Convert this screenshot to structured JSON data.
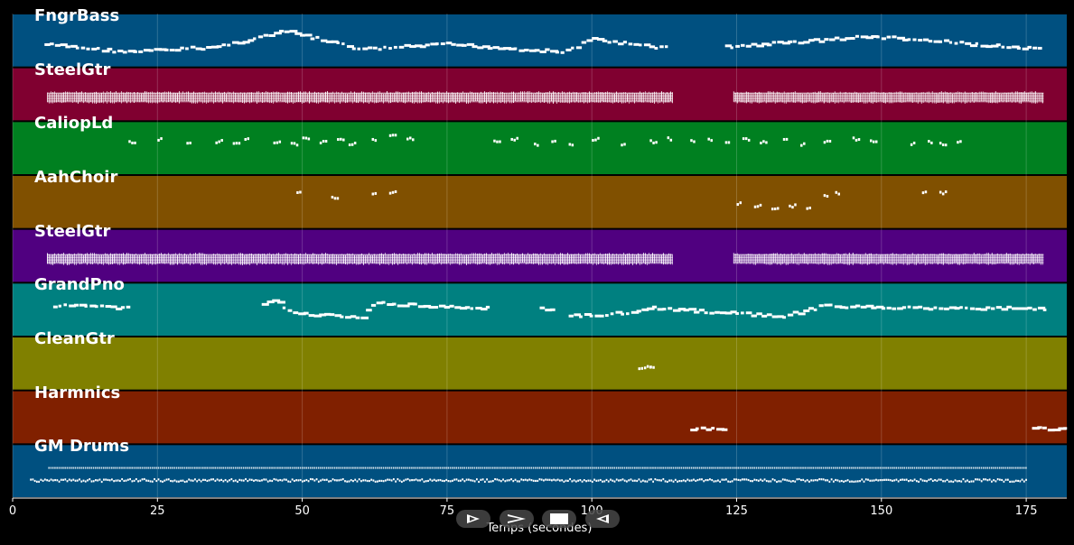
{
  "chart_data": {
    "type": "piano-roll",
    "xlabel": "Temps (secondes)",
    "xlim": [
      0,
      182
    ],
    "xticks": [
      0,
      25,
      50,
      75,
      100,
      125,
      150,
      175
    ],
    "grid": true,
    "tracks": [
      {
        "name": "FngrBass",
        "color": "#005080",
        "style": "line",
        "segments": [
          [
            5.5,
            113
          ],
          [
            123,
            177.5
          ]
        ],
        "wave": [
          [
            5,
            0.55
          ],
          [
            20,
            0.7
          ],
          [
            35,
            0.6
          ],
          [
            47,
            0.3
          ],
          [
            60,
            0.65
          ],
          [
            75,
            0.55
          ],
          [
            95,
            0.7
          ],
          [
            100,
            0.45
          ],
          [
            110,
            0.6
          ],
          [
            123,
            0.6
          ],
          [
            148,
            0.4
          ],
          [
            160,
            0.5
          ],
          [
            177,
            0.65
          ]
        ]
      },
      {
        "name": "SteelGtr",
        "color": "#800030",
        "style": "dense",
        "segments": [
          [
            6,
            114
          ],
          [
            124.5,
            178
          ]
        ]
      },
      {
        "name": "CaliopLd",
        "color": "#008020",
        "style": "dots",
        "dots": [
          [
            20,
            0.35
          ],
          [
            25,
            0.3
          ],
          [
            30,
            0.4
          ],
          [
            35,
            0.35
          ],
          [
            38,
            0.4
          ],
          [
            40,
            0.3
          ],
          [
            45,
            0.35
          ],
          [
            48,
            0.4
          ],
          [
            50,
            0.3
          ],
          [
            53,
            0.35
          ],
          [
            56,
            0.3
          ],
          [
            58,
            0.4
          ],
          [
            62,
            0.3
          ],
          [
            65,
            0.25
          ],
          [
            68,
            0.3
          ],
          [
            83,
            0.35
          ],
          [
            86,
            0.3
          ],
          [
            90,
            0.4
          ],
          [
            93,
            0.35
          ],
          [
            96,
            0.4
          ],
          [
            100,
            0.3
          ],
          [
            105,
            0.4
          ],
          [
            110,
            0.35
          ],
          [
            113,
            0.3
          ],
          [
            117,
            0.35
          ],
          [
            120,
            0.3
          ],
          [
            123,
            0.35
          ],
          [
            126,
            0.3
          ],
          [
            129,
            0.35
          ],
          [
            133,
            0.3
          ],
          [
            136,
            0.4
          ],
          [
            140,
            0.35
          ],
          [
            145,
            0.3
          ],
          [
            148,
            0.35
          ],
          [
            155,
            0.4
          ],
          [
            158,
            0.35
          ],
          [
            160,
            0.4
          ],
          [
            163,
            0.35
          ]
        ]
      },
      {
        "name": "AahChoir",
        "color": "#805000",
        "style": "dots",
        "dots": [
          [
            49,
            0.3
          ],
          [
            55,
            0.4
          ],
          [
            62,
            0.3
          ],
          [
            65,
            0.3
          ],
          [
            125,
            0.5
          ],
          [
            128,
            0.55
          ],
          [
            131,
            0.6
          ],
          [
            134,
            0.55
          ],
          [
            137,
            0.6
          ],
          [
            140,
            0.35
          ],
          [
            142,
            0.3
          ],
          [
            157,
            0.3
          ],
          [
            160,
            0.3
          ]
        ]
      },
      {
        "name": "SteelGtr",
        "color": "#500080",
        "style": "dense",
        "segments": [
          [
            6,
            114
          ],
          [
            124.5,
            178
          ]
        ]
      },
      {
        "name": "GrandPno",
        "color": "#008080",
        "style": "line",
        "segments": [
          [
            7,
            20
          ],
          [
            43,
            82
          ],
          [
            91,
            93
          ],
          [
            96,
            178
          ]
        ],
        "wave": [
          [
            7,
            0.4
          ],
          [
            20,
            0.45
          ],
          [
            43,
            0.4
          ],
          [
            45,
            0.3
          ],
          [
            48,
            0.55
          ],
          [
            55,
            0.6
          ],
          [
            60,
            0.65
          ],
          [
            62,
            0.35
          ],
          [
            70,
            0.4
          ],
          [
            82,
            0.45
          ],
          [
            91,
            0.45
          ],
          [
            96,
            0.6
          ],
          [
            105,
            0.55
          ],
          [
            110,
            0.45
          ],
          [
            125,
            0.55
          ],
          [
            133,
            0.6
          ],
          [
            140,
            0.4
          ],
          [
            155,
            0.45
          ],
          [
            178,
            0.45
          ]
        ]
      },
      {
        "name": "CleanGtr",
        "color": "#808000",
        "style": "dots",
        "dots": [
          [
            108,
            0.55
          ],
          [
            109,
            0.55
          ],
          [
            110,
            0.55
          ]
        ]
      },
      {
        "name": "Harmnics",
        "color": "#802000",
        "style": "line",
        "segments": [
          [
            117,
            123
          ],
          [
            176,
            182
          ]
        ],
        "wave": [
          [
            117,
            0.7
          ],
          [
            182,
            0.7
          ]
        ]
      },
      {
        "name": "GM Drums",
        "color": "#005080",
        "style": "drums",
        "segments": [
          [
            3,
            175
          ]
        ]
      }
    ]
  },
  "controls": {
    "play_label": "play",
    "forward_label": "forward",
    "stop_label": "stop",
    "rewind_label": "rewind"
  }
}
